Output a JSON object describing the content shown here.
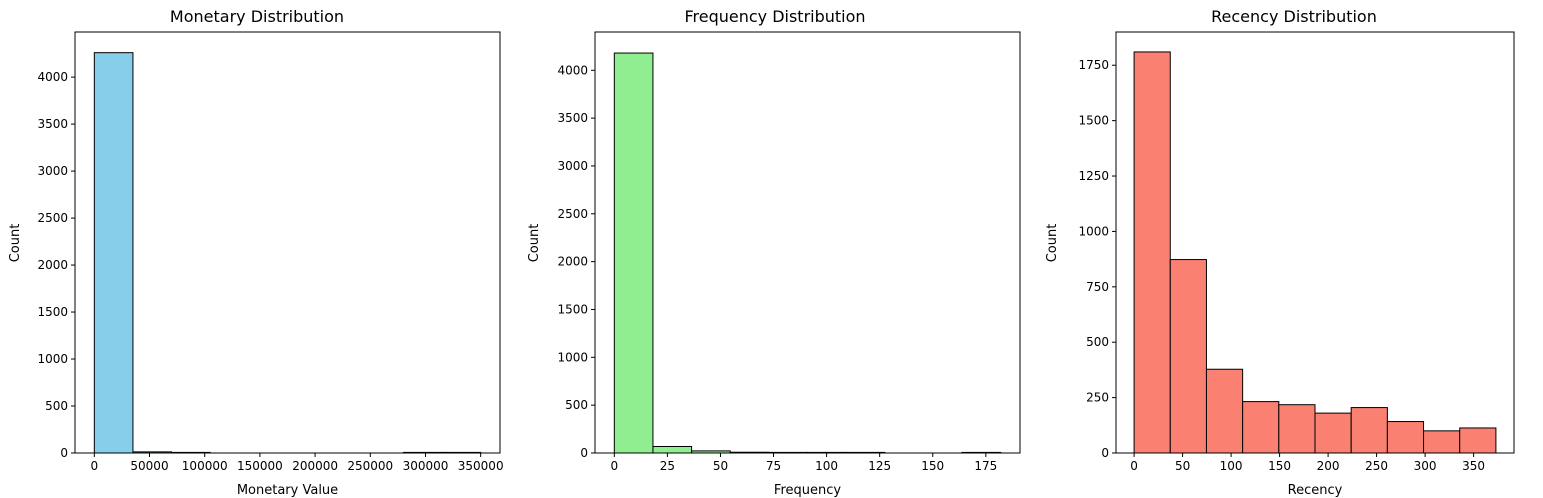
{
  "chart_data": [
    {
      "type": "bar",
      "title": "Monetary Distribution",
      "xlabel": "Monetary Value",
      "ylabel": "Count",
      "color": "#87CEEB",
      "edge_color": "#000000",
      "bins": [
        {
          "x0": 0,
          "x1": 35000,
          "count": 4260
        },
        {
          "x0": 35000,
          "x1": 70000,
          "count": 12
        },
        {
          "x0": 70000,
          "x1": 105000,
          "count": 6
        },
        {
          "x0": 105000,
          "x1": 140000,
          "count": 0
        },
        {
          "x0": 140000,
          "x1": 175000,
          "count": 0
        },
        {
          "x0": 175000,
          "x1": 210000,
          "count": 0
        },
        {
          "x0": 210000,
          "x1": 245000,
          "count": 0
        },
        {
          "x0": 245000,
          "x1": 280000,
          "count": 0
        },
        {
          "x0": 280000,
          "x1": 315000,
          "count": 1
        },
        {
          "x0": 315000,
          "x1": 350000,
          "count": 1
        }
      ],
      "xlim": [
        -17500,
        367500
      ],
      "ylim": [
        0,
        4480
      ],
      "xticks": [
        0,
        50000,
        100000,
        150000,
        200000,
        250000,
        300000,
        350000
      ],
      "xticklabels": [
        "0",
        "50000",
        "100000",
        "150000",
        "200000",
        "250000",
        "300000",
        "350000"
      ],
      "yticks": [
        0,
        500,
        1000,
        1500,
        2000,
        2500,
        3000,
        3500,
        4000
      ],
      "yticklabels": [
        "0",
        "500",
        "1000",
        "1500",
        "2000",
        "2500",
        "3000",
        "3500",
        "4000"
      ],
      "grid": false
    },
    {
      "type": "bar",
      "title": "Frequency Distribution",
      "xlabel": "Frequency",
      "ylabel": "Count",
      "color": "#90EE90",
      "edge_color": "#000000",
      "bins": [
        {
          "x0": 0,
          "x1": 18.2,
          "count": 4180
        },
        {
          "x0": 18.2,
          "x1": 36.4,
          "count": 68
        },
        {
          "x0": 36.4,
          "x1": 54.6,
          "count": 22
        },
        {
          "x0": 54.6,
          "x1": 72.8,
          "count": 8
        },
        {
          "x0": 72.8,
          "x1": 91.0,
          "count": 5
        },
        {
          "x0": 91.0,
          "x1": 109.2,
          "count": 3
        },
        {
          "x0": 109.2,
          "x1": 127.4,
          "count": 1
        },
        {
          "x0": 127.4,
          "x1": 145.6,
          "count": 0
        },
        {
          "x0": 145.6,
          "x1": 163.8,
          "count": 0
        },
        {
          "x0": 163.8,
          "x1": 182.0,
          "count": 1
        }
      ],
      "xlim": [
        -9.1,
        191.1
      ],
      "ylim": [
        0,
        4400
      ],
      "xticks": [
        0,
        25,
        50,
        75,
        100,
        125,
        150,
        175
      ],
      "xticklabels": [
        "0",
        "25",
        "50",
        "75",
        "100",
        "125",
        "150",
        "175"
      ],
      "yticks": [
        0,
        500,
        1000,
        1500,
        2000,
        2500,
        3000,
        3500,
        4000
      ],
      "yticklabels": [
        "0",
        "500",
        "1000",
        "1500",
        "2000",
        "2500",
        "3000",
        "3500",
        "4000"
      ],
      "grid": false
    },
    {
      "type": "bar",
      "title": "Recency Distribution",
      "xlabel": "Recency",
      "ylabel": "Count",
      "color": "#FA8072",
      "edge_color": "#000000",
      "bins": [
        {
          "x0": 0,
          "x1": 37.3,
          "count": 1810
        },
        {
          "x0": 37.3,
          "x1": 74.6,
          "count": 873
        },
        {
          "x0": 74.6,
          "x1": 111.9,
          "count": 378
        },
        {
          "x0": 111.9,
          "x1": 149.2,
          "count": 232
        },
        {
          "x0": 149.2,
          "x1": 186.5,
          "count": 218
        },
        {
          "x0": 186.5,
          "x1": 223.8,
          "count": 180
        },
        {
          "x0": 223.8,
          "x1": 261.1,
          "count": 205
        },
        {
          "x0": 261.1,
          "x1": 298.4,
          "count": 142
        },
        {
          "x0": 298.4,
          "x1": 335.7,
          "count": 100
        },
        {
          "x0": 335.7,
          "x1": 373.0,
          "count": 113
        }
      ],
      "xlim": [
        -18.65,
        391.65
      ],
      "ylim": [
        0,
        1900
      ],
      "xticks": [
        0,
        50,
        100,
        150,
        200,
        250,
        300,
        350
      ],
      "xticklabels": [
        "0",
        "50",
        "100",
        "150",
        "200",
        "250",
        "300",
        "350"
      ],
      "yticks": [
        0,
        250,
        500,
        750,
        1000,
        1250,
        1500,
        1750
      ],
      "yticklabels": [
        "0",
        "250",
        "500",
        "750",
        "1000",
        "1250",
        "1500",
        "1750"
      ],
      "grid": false
    }
  ]
}
